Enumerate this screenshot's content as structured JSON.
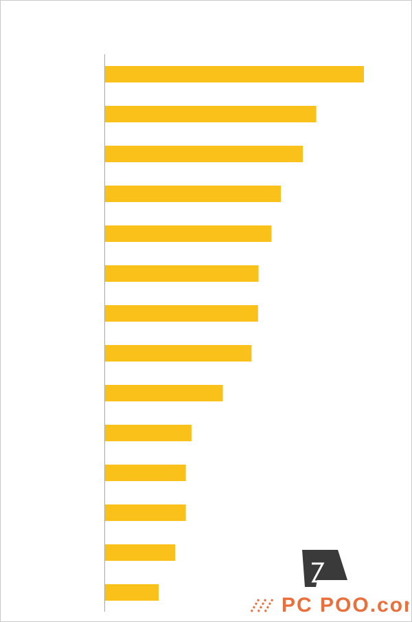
{
  "chart_data": {
    "type": "bar",
    "orientation": "horizontal",
    "title": "",
    "xlabel": "",
    "ylabel": "",
    "bar_color": "#FBC11B",
    "axis_color": "#A6A6A6",
    "xlim": [
      0,
      100
    ],
    "values": [
      100,
      81.6,
      76.4,
      67.9,
      64.3,
      59.3,
      59.1,
      56.6,
      45.5,
      33.4,
      31.2,
      31.2,
      27.1,
      20.7
    ]
  },
  "watermark": {
    "brand": "PC POO.com",
    "logo_color": "#3a3a3a",
    "accent_color": "#ea6f3a"
  }
}
